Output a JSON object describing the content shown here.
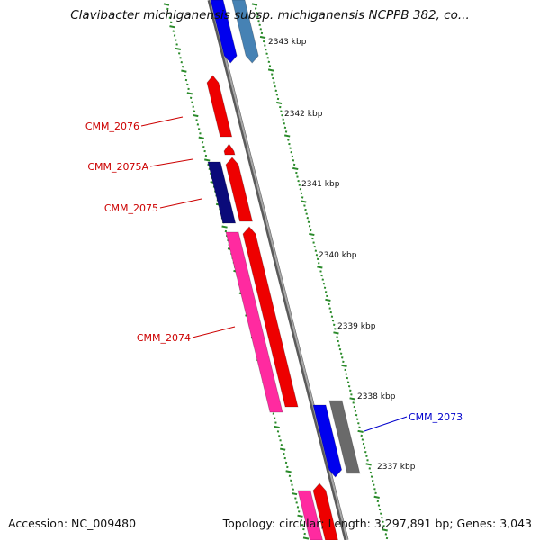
{
  "title": "Clavibacter michiganensis subsp. michiganensis NCPPB 382, co...",
  "footer": {
    "accession": "Accession: NC_009480",
    "summary": "Topology: circular; Length: 3,297,891 bp; Genes: 3,043"
  },
  "scale_labels": [
    "2343 kbp",
    "2342 kbp",
    "2341 kbp",
    "2340 kbp",
    "2339 kbp",
    "2338 kbp",
    "2337 kbp"
  ],
  "gene_labels": [
    {
      "text": "CMM_2076",
      "color": "#cc0000"
    },
    {
      "text": "CMM_2075A",
      "color": "#cc0000"
    },
    {
      "text": "CMM_2075",
      "color": "#cc0000"
    },
    {
      "text": "CMM_2074",
      "color": "#cc0000"
    },
    {
      "text": "CMM_2073",
      "color": "#0000cc"
    }
  ],
  "colors": {
    "backbone": "#7a7a7a",
    "tick": "#2a8a2a",
    "forward_gene": "#ee0000",
    "pink_gene": "#ff2aa0",
    "navy_gene": "#0a0a7a",
    "blue_gene": "#0000ee",
    "steel_gene": "#4682b4",
    "gray_gene": "#6a6a6a"
  }
}
